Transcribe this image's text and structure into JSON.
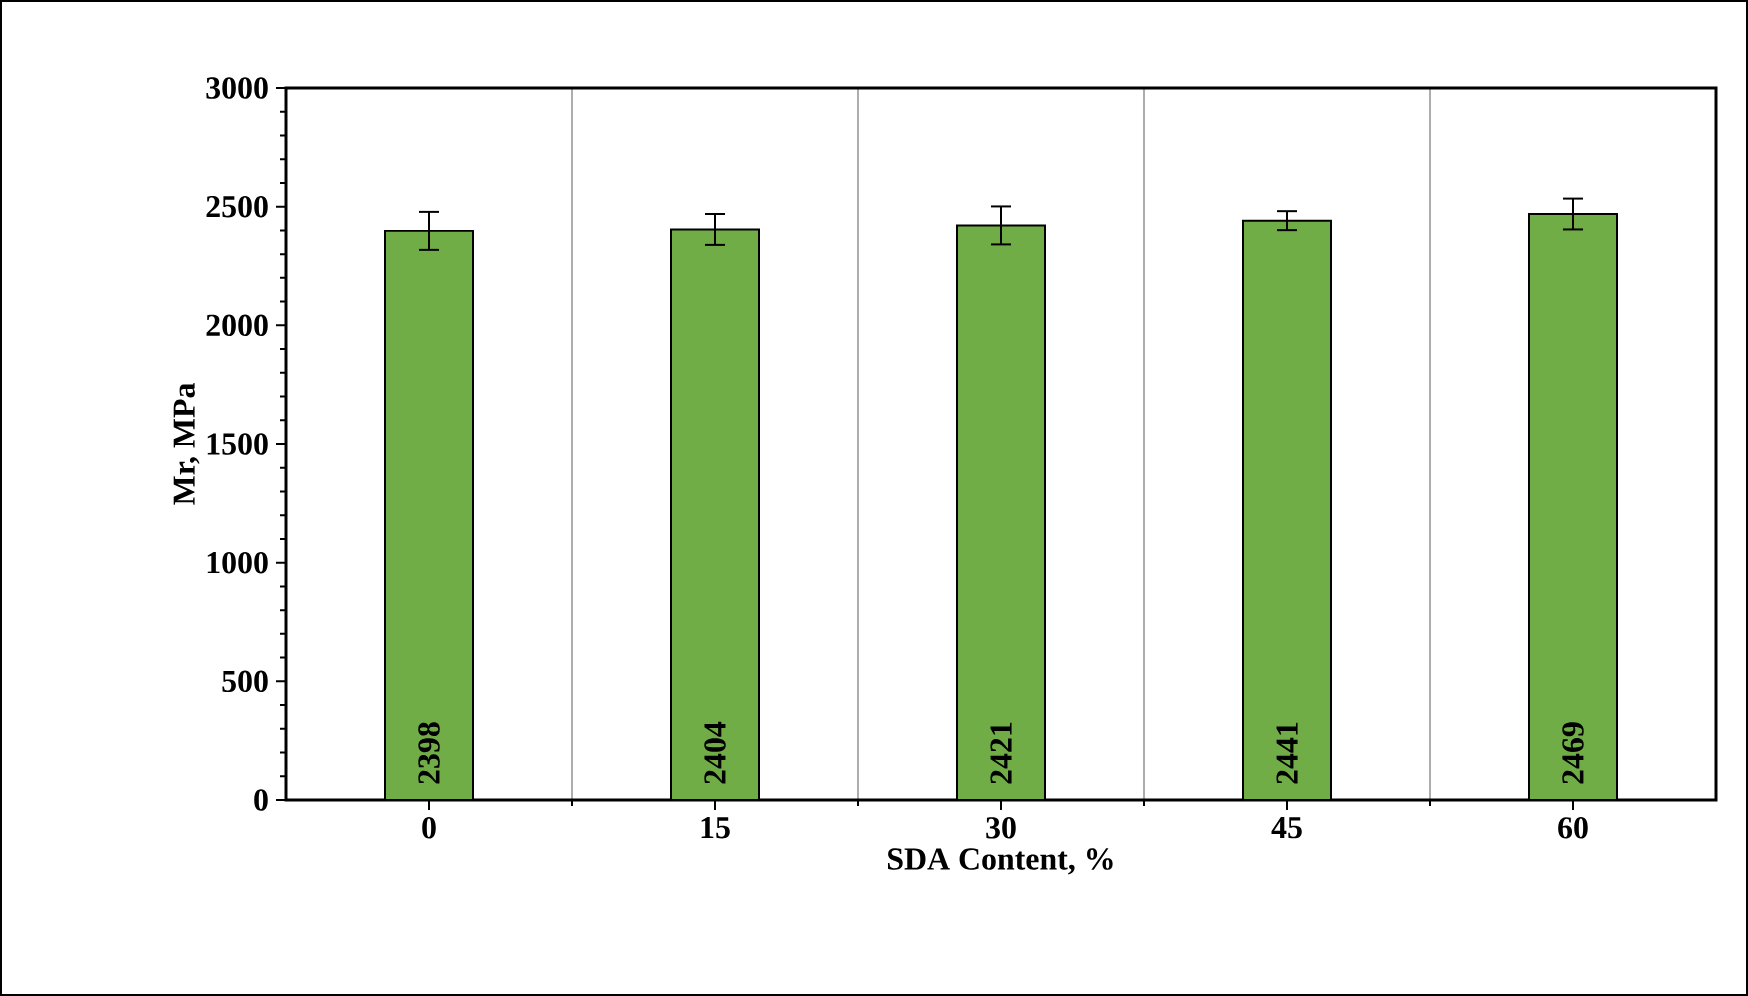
{
  "chart_data": {
    "type": "bar",
    "xlabel": "SDA Content, %",
    "ylabel": "Mr, MPa",
    "categories": [
      "0",
      "15",
      "30",
      "45",
      "60"
    ],
    "values": [
      2398,
      2404,
      2421,
      2441,
      2469
    ],
    "errors": [
      80,
      65,
      80,
      40,
      65
    ],
    "color": "#70ad47",
    "ylim": [
      0,
      3000
    ],
    "yticks": [
      0,
      500,
      1000,
      1500,
      2000,
      2500,
      3000
    ],
    "grid": "x",
    "data_labels": true
  }
}
